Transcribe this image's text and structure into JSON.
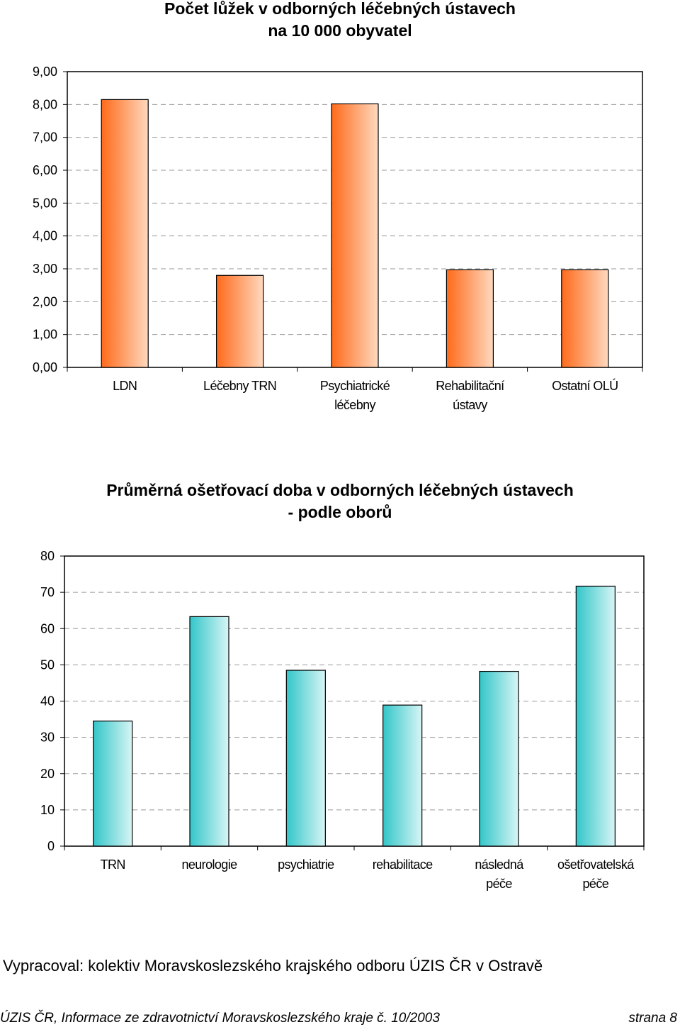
{
  "chart_data": [
    {
      "type": "bar",
      "title": [
        "Počet lůžek v odborných léčebných ústavech",
        "na 10 000 obyvatel"
      ],
      "categories": [
        [
          "LDN"
        ],
        [
          "Léčebny TRN"
        ],
        [
          "Psychiatrické",
          "léčebny"
        ],
        [
          "Rehabilitační",
          "ústavy"
        ],
        [
          "Ostatní OLÚ"
        ]
      ],
      "values": [
        8.15,
        2.8,
        8.02,
        2.97,
        2.97
      ],
      "ylim": [
        0,
        9
      ],
      "yticks": [
        "0,00",
        "1,00",
        "2,00",
        "3,00",
        "4,00",
        "5,00",
        "6,00",
        "7,00",
        "8,00",
        "9,00"
      ],
      "grid": true,
      "colors": {
        "dark": "#ff6a1a",
        "light": "#ffd9bf"
      }
    },
    {
      "type": "bar",
      "title": [
        "Průměrná ošetřovací doba v odborných léčebných ústavech",
        "- podle oborů"
      ],
      "categories": [
        [
          "TRN"
        ],
        [
          "neurologie"
        ],
        [
          "psychiatrie"
        ],
        [
          "rehabilitace"
        ],
        [
          "následná",
          "péče"
        ],
        [
          "ošetřovatelská",
          "péče"
        ]
      ],
      "values": [
        34.5,
        63.3,
        48.5,
        38.9,
        48.2,
        71.7
      ],
      "ylim": [
        0,
        80
      ],
      "yticks": [
        "0",
        "10",
        "20",
        "30",
        "40",
        "50",
        "60",
        "70",
        "80"
      ],
      "grid": true,
      "colors": {
        "dark": "#33c6c9",
        "light": "#d8f5f5"
      }
    }
  ],
  "footer": {
    "credit": "Vypracoval: kolektiv Moravskoslezského krajského odboru ÚZIS ČR v Ostravě",
    "publication": "ÚZIS ČR, Informace ze zdravotnictví Moravskoslezského kraje č. 10/2003",
    "page": "strana 8"
  }
}
